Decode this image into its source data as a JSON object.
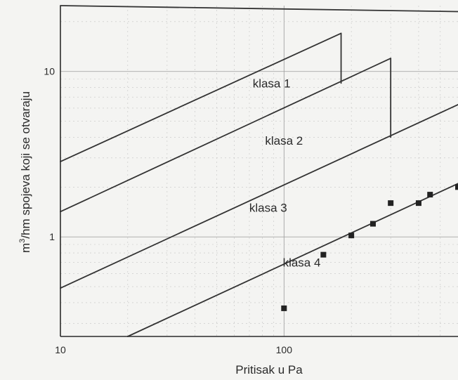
{
  "chart_data": {
    "type": "line",
    "x_scale": "log",
    "y_scale": "log",
    "xlim": [
      10,
      600
    ],
    "ylim": [
      0.25,
      25
    ],
    "xlabel": "Pritisak u Pa",
    "ylabel_parts": [
      "m",
      "3",
      "/hm spojeva koji se otvaraju"
    ],
    "x_ticks": [
      {
        "value": 10,
        "label": "10"
      },
      {
        "value": 100,
        "label": "100"
      }
    ],
    "y_ticks": [
      {
        "value": 1,
        "label": "1"
      },
      {
        "value": 10,
        "label": "10"
      }
    ],
    "grid": true,
    "lines": [
      {
        "name": "klasa-1-upper-limit",
        "points": [
          [
            10,
            2.85
          ],
          [
            180,
            17.0
          ]
        ]
      },
      {
        "name": "klasa-2-upper-limit",
        "points": [
          [
            10,
            1.42
          ],
          [
            300,
            12.0
          ]
        ]
      },
      {
        "name": "klasa-3-upper-limit",
        "points": [
          [
            10,
            0.49
          ],
          [
            600,
            6.3
          ]
        ]
      },
      {
        "name": "klasa-4-upper-limit",
        "points": [
          [
            20,
            0.25
          ],
          [
            600,
            2.1
          ]
        ]
      },
      {
        "name": "top-boundary",
        "points": [
          [
            10,
            25
          ],
          [
            600,
            23.0
          ]
        ]
      },
      {
        "name": "vertical-cap-180",
        "points": [
          [
            180,
            8.5
          ],
          [
            180,
            17.0
          ]
        ]
      },
      {
        "name": "vertical-cap-300",
        "points": [
          [
            300,
            4.0
          ],
          [
            300,
            12.0
          ]
        ]
      }
    ],
    "region_labels": [
      {
        "text": "klasa 1",
        "x": 88,
        "y": 8.0
      },
      {
        "text": "klasa 2",
        "x": 100,
        "y": 3.6
      },
      {
        "text": "klasa 3",
        "x": 85,
        "y": 1.42
      },
      {
        "text": "klasa 4",
        "x": 120,
        "y": 0.66
      }
    ],
    "scatter": {
      "name": "measured points",
      "points": [
        [
          100,
          0.37
        ],
        [
          150,
          0.78
        ],
        [
          200,
          1.02
        ],
        [
          250,
          1.2
        ],
        [
          300,
          1.6
        ],
        [
          400,
          1.6
        ],
        [
          450,
          1.8
        ],
        [
          600,
          2.0
        ]
      ]
    }
  }
}
